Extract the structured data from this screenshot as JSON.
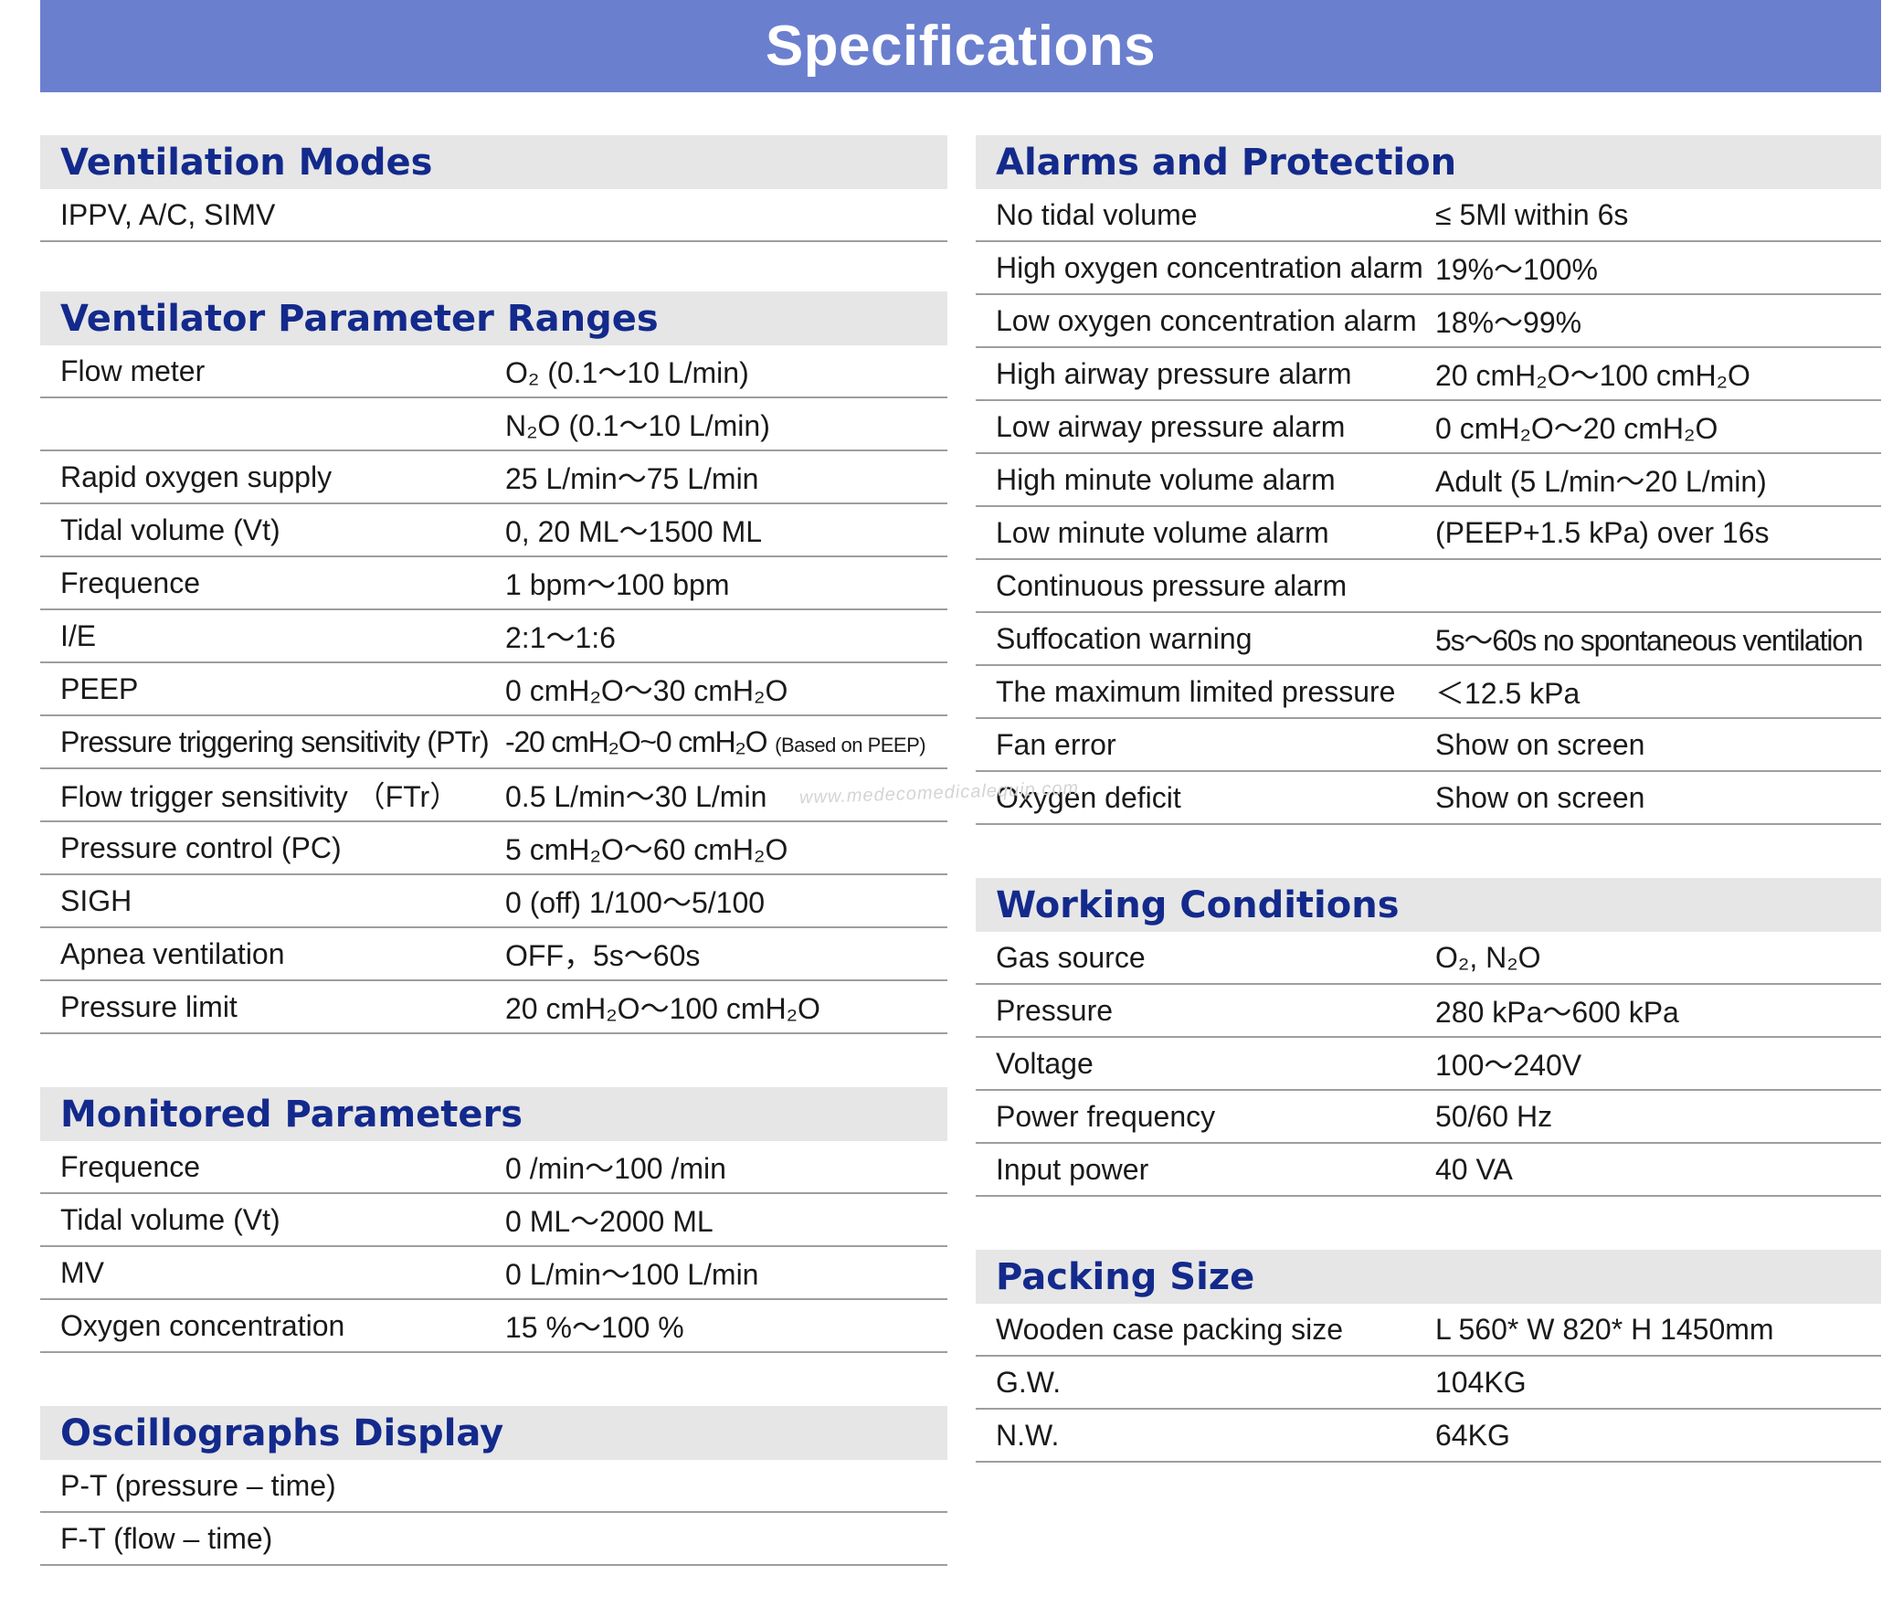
{
  "header": {
    "title": "Specifications"
  },
  "watermark": "www.medecomedicalequip.com",
  "left": [
    {
      "title": "Ventilation Modes",
      "gap": 54,
      "rows": [
        {
          "key": "IPPV, A/C, SIMV",
          "value": ""
        }
      ]
    },
    {
      "title": "Ventilator Parameter Ranges",
      "gap": 58,
      "rows": [
        {
          "key": "Flow meter",
          "value": "O₂ (0.1～10 L/min)"
        },
        {
          "key": "",
          "value": "N₂O (0.1～10 L/min)"
        },
        {
          "key": "Rapid oxygen supply",
          "value": "25 L/min～75 L/min"
        },
        {
          "key": "Tidal volume (Vt)",
          "value": "0, 20 ML～1500 ML"
        },
        {
          "key": "Frequence",
          "value": "1 bpm～100 bpm"
        },
        {
          "key": "I/E",
          "value": "2:1～1:6"
        },
        {
          "key": "PEEP",
          "value": "0 cmH₂O～30 cmH₂O"
        },
        {
          "key": "Pressure triggering sensitivity (PTr)",
          "value": "-20 cmH₂O~0 cmH₂O",
          "note": "(Based on PEEP)",
          "cond": true
        },
        {
          "key": "Flow trigger sensitivity （FTr）",
          "value": "0.5 L/min～30 L/min"
        },
        {
          "key": "Pressure control (PC)",
          "value": "5 cmH₂O～60 cmH₂O"
        },
        {
          "key": "SIGH",
          "value": "0 (off)  1/100～5/100"
        },
        {
          "key": "Apnea ventilation",
          "value": "OFF，5s～60s"
        },
        {
          "key": "Pressure limit",
          "value": "20 cmH₂O～100 cmH₂O"
        }
      ]
    },
    {
      "title": "Monitored Parameters",
      "gap": 58,
      "rows": [
        {
          "key": "Frequence",
          "value": "0 /min～100 /min"
        },
        {
          "key": "Tidal volume (Vt)",
          "value": "0 ML～2000 ML"
        },
        {
          "key": "MV",
          "value": "0 L/min～100 L/min"
        },
        {
          "key": "Oxygen concentration",
          "value": "15 %～100 %"
        }
      ]
    },
    {
      "title": "Oscillographs Display",
      "gap": 0,
      "rows": [
        {
          "key": "P-T (pressure – time)",
          "value": ""
        },
        {
          "key": "F-T (flow – time)",
          "value": ""
        }
      ]
    }
  ],
  "right": [
    {
      "title": "Alarms and Protection",
      "gap": 58,
      "rows": [
        {
          "key": "No tidal volume",
          "value": "≤ 5Ml within 6s"
        },
        {
          "key": "High oxygen concentration alarm",
          "value": "19%～100%"
        },
        {
          "key": "Low oxygen concentration alarm",
          "value": "18%～99%"
        },
        {
          "key": "High airway  pressure alarm",
          "value": "20 cmH₂O～100 cmH₂O"
        },
        {
          "key": "Low airway  pressure alarm",
          "value": "0 cmH₂O～20 cmH₂O"
        },
        {
          "key": "High minute volume alarm",
          "value": "Adult (5 L/min～20 L/min)"
        },
        {
          "key": "Low minute volume alarm",
          "value": "(PEEP+1.5 kPa) over 16s"
        },
        {
          "key": "Continuous pressure alarm",
          "value": ""
        },
        {
          "key": "Suffocation warning",
          "value": "5s～60s no spontaneous ventilation",
          "vcond": true
        },
        {
          "key": "The maximum limited pressure",
          "value": "＜12.5 kPa"
        },
        {
          "key": "Fan error",
          "value": "Show on screen"
        },
        {
          "key": "Oxygen deficit",
          "value": "Show on screen"
        }
      ]
    },
    {
      "title": "Working Conditions",
      "gap": 58,
      "rows": [
        {
          "key": "Gas source",
          "value": "O₂, N₂O"
        },
        {
          "key": "Pressure",
          "value": "280 kPa～600 kPa"
        },
        {
          "key": "Voltage",
          "value": "100～240V"
        },
        {
          "key": "Power frequency",
          "value": "50/60 Hz"
        },
        {
          "key": "Input power",
          "value": "40 VA"
        }
      ]
    },
    {
      "title": "Packing  Size",
      "gap": 0,
      "rows": [
        {
          "key": "Wooden case packing size",
          "value": "L 560* W 820* H 1450mm"
        },
        {
          "key": "G.W.",
          "value": "104KG"
        },
        {
          "key": "N.W.",
          "value": "64KG"
        }
      ]
    }
  ]
}
